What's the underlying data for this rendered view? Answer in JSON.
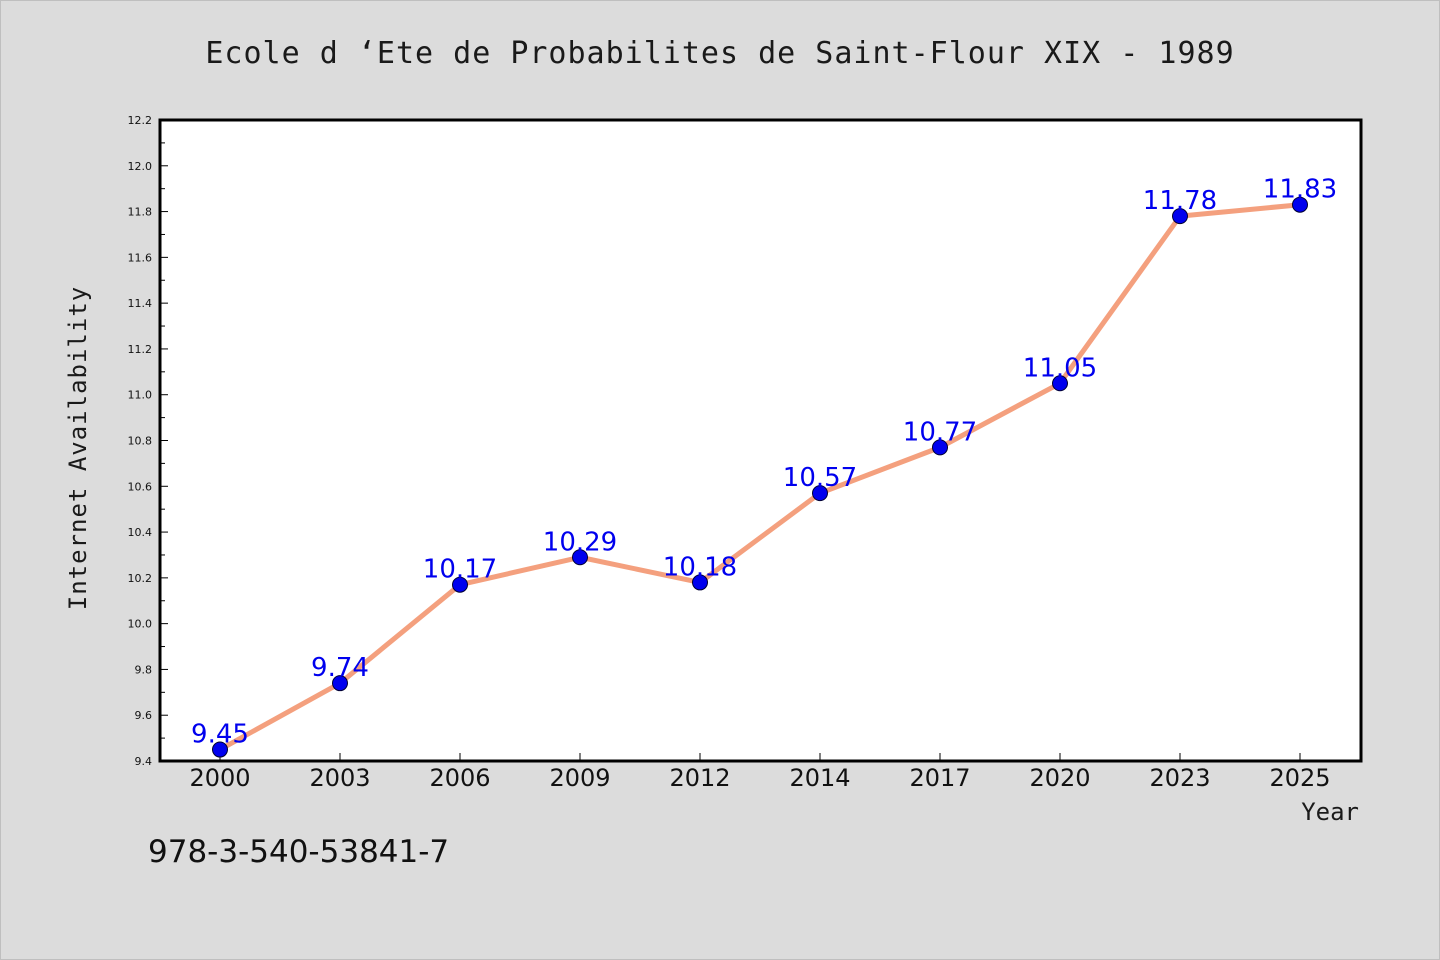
{
  "page": {
    "title": "Ecole d ‘Ete de Probabilites de Saint-Flour XIX - 1989",
    "footer_code": "978-3-540-53841-7"
  },
  "colors": {
    "background": "#dcdcdc",
    "plot_background": "#ffffff",
    "line": "#f4a07e",
    "marker": "#0000ee",
    "data_label": "#0000ee"
  },
  "chart_data": {
    "type": "line",
    "title": "Ecole d ‘Ete de Probabilites de Saint-Flour XIX - 1989",
    "xlabel": "Year",
    "ylabel": "Internet Availability",
    "categories": [
      "2000",
      "2003",
      "2006",
      "2009",
      "2012",
      "2014",
      "2017",
      "2020",
      "2023",
      "2025"
    ],
    "series": [
      {
        "values": [
          9.45,
          9.74,
          10.17,
          10.29,
          10.18,
          10.57,
          10.77,
          11.05,
          11.78,
          11.83
        ],
        "data_labels": [
          "9.45",
          "9.74",
          "10.17",
          "10.29",
          "10.18",
          "10.57",
          "10.77",
          "11.05",
          "11.78",
          "11.83"
        ]
      }
    ],
    "ylim": [
      9.4,
      12.2
    ],
    "yticks": [
      "9.4",
      "9.6",
      "9.8",
      "10.0",
      "10.2",
      "10.4",
      "10.6",
      "10.8",
      "11.0",
      "11.2",
      "11.4",
      "11.6",
      "11.8",
      "12.0",
      "12.2"
    ],
    "grid": false,
    "legend": "none"
  }
}
